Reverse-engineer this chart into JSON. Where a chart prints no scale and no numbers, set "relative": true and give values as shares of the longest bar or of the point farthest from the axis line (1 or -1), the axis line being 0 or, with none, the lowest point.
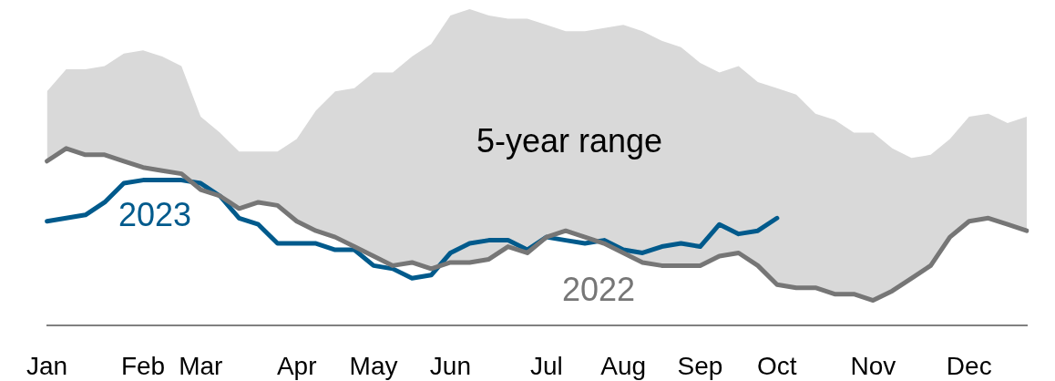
{
  "chart_data": {
    "type": "line",
    "relative": true,
    "tick_labels": "x",
    "marker": "none",
    "line_style": "solid",
    "categories": [
      "Jan",
      null,
      null,
      null,
      null,
      "Feb",
      null,
      null,
      "Mar",
      null,
      null,
      null,
      null,
      "Apr",
      null,
      null,
      null,
      "May",
      null,
      null,
      null,
      "Jun",
      null,
      null,
      null,
      null,
      "Jul",
      null,
      null,
      null,
      "Aug",
      null,
      null,
      null,
      "Sep",
      null,
      null,
      null,
      "Oct",
      null,
      null,
      null,
      null,
      "Nov",
      null,
      null,
      null,
      null,
      "Dec",
      null,
      null,
      null
    ],
    "series": [
      {
        "name": "5-year range",
        "type": "area",
        "color": "#d9d9d9",
        "values": [
          0.74,
          0.81,
          0.81,
          0.82,
          0.86,
          0.87,
          0.85,
          0.82,
          0.66,
          0.61,
          0.55,
          0.55,
          0.55,
          0.59,
          0.68,
          0.74,
          0.75,
          0.8,
          0.8,
          0.85,
          0.89,
          0.98,
          1,
          0.98,
          0.97,
          0.97,
          0.95,
          0.93,
          0.93,
          0.94,
          0.95,
          0.93,
          0.9,
          0.88,
          0.83,
          0.8,
          0.82,
          0.77,
          0.75,
          0.73,
          0.67,
          0.65,
          0.61,
          0.61,
          0.56,
          0.53,
          0.54,
          0.59,
          0.66,
          0.67,
          0.64,
          0.66
        ]
      },
      {
        "name": "2022",
        "color": "#767676",
        "values": [
          0.52,
          0.56,
          0.54,
          0.54,
          0.52,
          0.5,
          0.49,
          0.48,
          0.43,
          0.41,
          0.37,
          0.39,
          0.38,
          0.33,
          0.3,
          0.28,
          0.25,
          0.22,
          0.19,
          0.2,
          0.18,
          0.2,
          0.2,
          0.21,
          0.25,
          0.23,
          0.28,
          0.3,
          0.28,
          0.26,
          0.23,
          0.2,
          0.19,
          0.19,
          0.19,
          0.22,
          0.23,
          0.19,
          0.13,
          0.12,
          0.12,
          0.1,
          0.1,
          0.08,
          0.11,
          0.15,
          0.19,
          0.28,
          0.33,
          0.34,
          0.32,
          0.3
        ]
      },
      {
        "name": "2023",
        "color": "#005a8c",
        "values": [
          0.33,
          0.34,
          0.35,
          0.39,
          0.45,
          0.46,
          0.46,
          0.46,
          0.45,
          0.41,
          0.34,
          0.32,
          0.26,
          0.26,
          0.26,
          0.24,
          0.24,
          0.19,
          0.18,
          0.15,
          0.16,
          0.23,
          0.26,
          0.27,
          0.27,
          0.24,
          0.28,
          0.27,
          0.26,
          0.27,
          0.24,
          0.23,
          0.25,
          0.26,
          0.25,
          0.32,
          0.29,
          0.3,
          0.34,
          null,
          null,
          null,
          null,
          null,
          null,
          null,
          null,
          null,
          null,
          null,
          null,
          null
        ]
      }
    ]
  }
}
